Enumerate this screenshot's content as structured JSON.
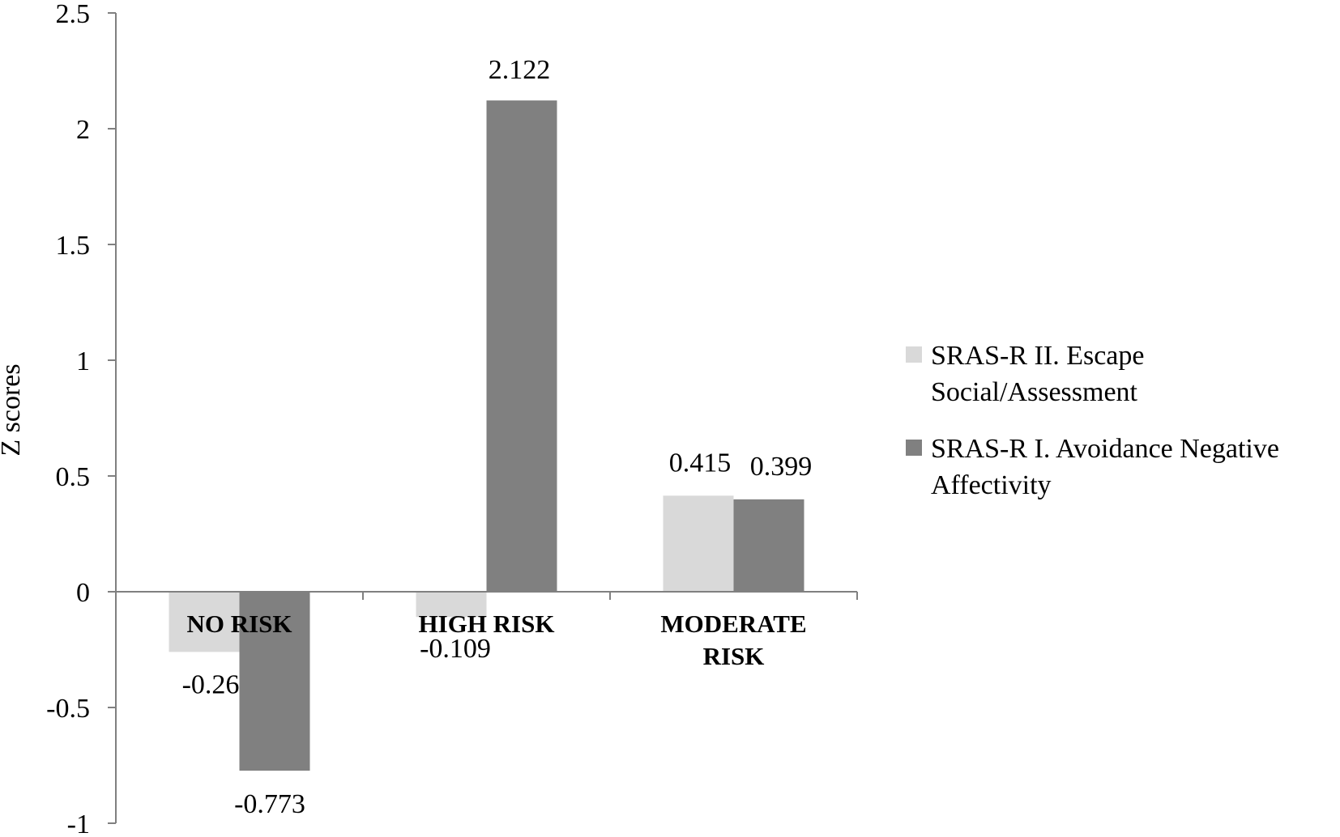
{
  "chart_data": {
    "type": "bar",
    "categories": [
      "NO RISK",
      "HIGH RISK",
      "MODERATE RISK"
    ],
    "category_label_lines": [
      [
        "NO RISK"
      ],
      [
        "HIGH RISK"
      ],
      [
        "MODERATE",
        "RISK"
      ]
    ],
    "series": [
      {
        "name": "SRAS-R II. Escape Social/Assessment",
        "legend_lines": [
          "SRAS-R II. Escape",
          "Social/Assessment"
        ],
        "color": "#d9d9d9",
        "values": [
          -0.26,
          -0.109,
          0.415
        ],
        "labels": [
          "-0.26",
          "-0.109",
          "0.415"
        ]
      },
      {
        "name": "SRAS-R I. Avoidance Negative Affectivity",
        "legend_lines": [
          "SRAS-R I. Avoidance Negative",
          "Affectivity"
        ],
        "color": "#808080",
        "values": [
          -0.773,
          2.122,
          0.399
        ],
        "labels": [
          "-0.773",
          "2.122",
          "0.399"
        ]
      }
    ],
    "ylabel": "Z scores",
    "xlabel": "",
    "title": "",
    "ylim": [
      -1,
      2.5
    ],
    "yticks": [
      -1,
      -0.5,
      0,
      0.5,
      1,
      1.5,
      2,
      2.5
    ],
    "ytick_labels": [
      "-1",
      "-0.5",
      "0",
      "0.5",
      "1",
      "1.5",
      "2",
      "2.5"
    ],
    "grid": false,
    "legend_position": "right",
    "axis_color": "#808080"
  }
}
